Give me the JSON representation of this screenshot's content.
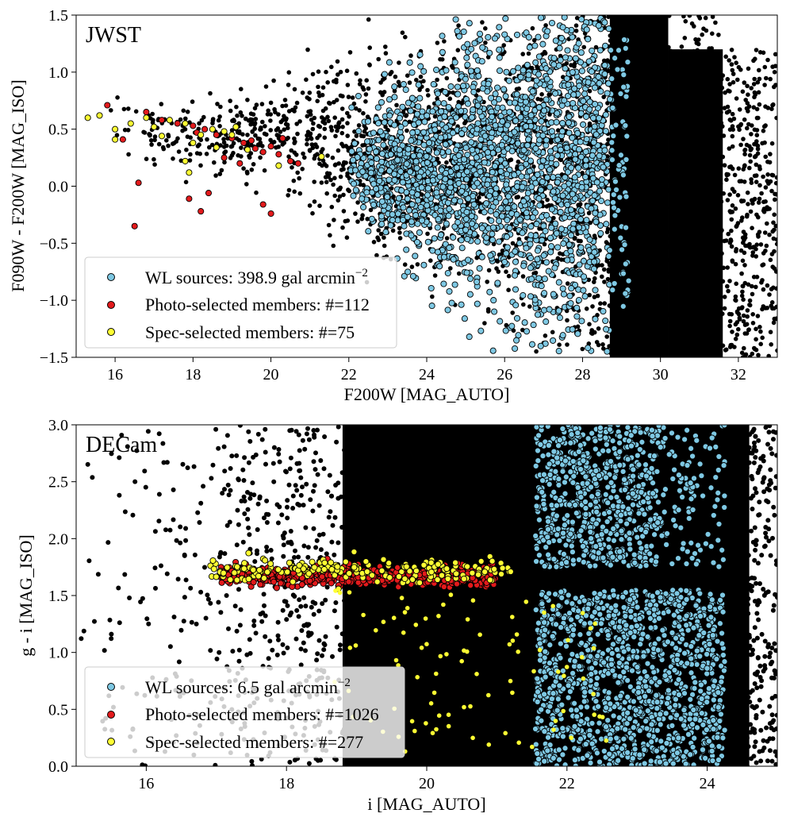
{
  "chart_data": [
    {
      "type": "scatter",
      "panel_label": "JWST",
      "xlabel": "F200W [MAG_AUTO]",
      "ylabel": "F090W - F200W [MAG_ISO]",
      "xlim": [
        15,
        33
      ],
      "ylim": [
        -1.5,
        1.5
      ],
      "xticks": [
        "16",
        "18",
        "20",
        "22",
        "24",
        "26",
        "28",
        "30",
        "32"
      ],
      "yticks": [
        "−1.5",
        "−1.0",
        "−0.5",
        "0.0",
        "0.5",
        "1.0",
        "1.5"
      ],
      "grid": false,
      "legend_position": "lower-left",
      "legend": [
        {
          "text": "WL sources: 398.9 gal arcmin",
          "sup": "−2",
          "color": "#7ec8e3"
        },
        {
          "text": "Photo-selected members: #=112",
          "sup": "",
          "color": "#e31a1c"
        },
        {
          "text": "Spec-selected members: #=75",
          "sup": "",
          "color": "#ffff33"
        }
      ],
      "series": [
        {
          "name": "all sources",
          "color": "#000000",
          "x_range": [
            15.5,
            33
          ],
          "distribution": "dense at faint end, dense wall at 28.5-32.5"
        },
        {
          "name": "WL sources",
          "color": "#7ec8e3",
          "x_range": [
            22,
            29.5
          ],
          "y_range": [
            -1.45,
            1.5
          ]
        },
        {
          "name": "Photo-selected members",
          "color": "#e31a1c",
          "points": [
            [
              15.8,
              0.71
            ],
            [
              16.2,
              0.41
            ],
            [
              16.8,
              0.65
            ],
            [
              17.2,
              0.58
            ],
            [
              17.6,
              0.55
            ],
            [
              18.0,
              0.53
            ],
            [
              18.3,
              0.5
            ],
            [
              18.6,
              0.45
            ],
            [
              19.0,
              0.42
            ],
            [
              19.3,
              0.38
            ],
            [
              19.6,
              0.33
            ],
            [
              19.8,
              0.3
            ],
            [
              20.0,
              0.35
            ],
            [
              20.2,
              0.28
            ],
            [
              20.5,
              0.22
            ],
            [
              20.7,
              0.2
            ],
            [
              16.6,
              0.03
            ],
            [
              16.5,
              -0.35
            ],
            [
              17.9,
              -0.11
            ],
            [
              18.4,
              -0.06
            ],
            [
              18.2,
              -0.22
            ],
            [
              19.8,
              -0.16
            ],
            [
              20.0,
              -0.24
            ],
            [
              18.8,
              0.25
            ],
            [
              19.2,
              0.2
            ],
            [
              20.3,
              0.42
            ],
            [
              19.5,
              0.4
            ],
            [
              18.1,
              0.47
            ]
          ]
        },
        {
          "name": "Spec-selected members",
          "color": "#ffff33",
          "points": [
            [
              15.3,
              0.6
            ],
            [
              15.6,
              0.62
            ],
            [
              16.0,
              0.5
            ],
            [
              16.0,
              0.41
            ],
            [
              16.4,
              0.55
            ],
            [
              16.8,
              0.6
            ],
            [
              17.0,
              0.52
            ],
            [
              17.4,
              0.58
            ],
            [
              17.8,
              0.55
            ],
            [
              18.0,
              0.38
            ],
            [
              18.2,
              0.45
            ],
            [
              18.5,
              0.5
            ],
            [
              18.8,
              0.48
            ],
            [
              19.0,
              0.45
            ],
            [
              19.4,
              0.32
            ],
            [
              17.9,
              0.12
            ],
            [
              17.8,
              0.22
            ],
            [
              20.2,
              0.18
            ],
            [
              21.3,
              0.26
            ],
            [
              18.6,
              0.34
            ],
            [
              19.1,
              0.52
            ],
            [
              17.2,
              0.44
            ]
          ]
        }
      ]
    },
    {
      "type": "scatter",
      "panel_label": "DECam",
      "xlabel": "i [MAG_AUTO]",
      "ylabel": "g - i [MAG_ISO]",
      "xlim": [
        15,
        25
      ],
      "ylim": [
        0,
        3
      ],
      "xticks": [
        "16",
        "18",
        "20",
        "22",
        "24"
      ],
      "yticks": [
        "0.0",
        "0.5",
        "1.0",
        "1.5",
        "2.0",
        "2.5",
        "3.0"
      ],
      "grid": false,
      "legend_position": "lower-left",
      "legend": [
        {
          "text": "WL sources: 6.5 gal arcmin",
          "sup": "−2",
          "color": "#7ec8e3"
        },
        {
          "text": "Photo-selected members: #=1026",
          "sup": "",
          "color": "#e31a1c"
        },
        {
          "text": "Spec-selected members: #=277",
          "sup": "",
          "color": "#ffff33"
        }
      ],
      "series": [
        {
          "name": "all sources",
          "color": "#000000",
          "x_range": [
            15,
            25
          ],
          "distribution": "dense, wall at 20.5-21.5"
        },
        {
          "name": "WL sources",
          "color": "#7ec8e3",
          "x_range": [
            21.5,
            24.8
          ],
          "y_range": [
            0,
            3
          ],
          "gap_y": [
            1.55,
            1.75
          ]
        },
        {
          "name": "Photo-selected members",
          "color": "#e31a1c",
          "x_range": [
            17.0,
            21.0
          ],
          "y_center": 1.67,
          "y_spread": 0.1
        },
        {
          "name": "Spec-selected members",
          "color": "#ffff33",
          "x_range": [
            16.9,
            22.5
          ],
          "y_range": [
            0.05,
            2.1
          ]
        }
      ]
    }
  ]
}
